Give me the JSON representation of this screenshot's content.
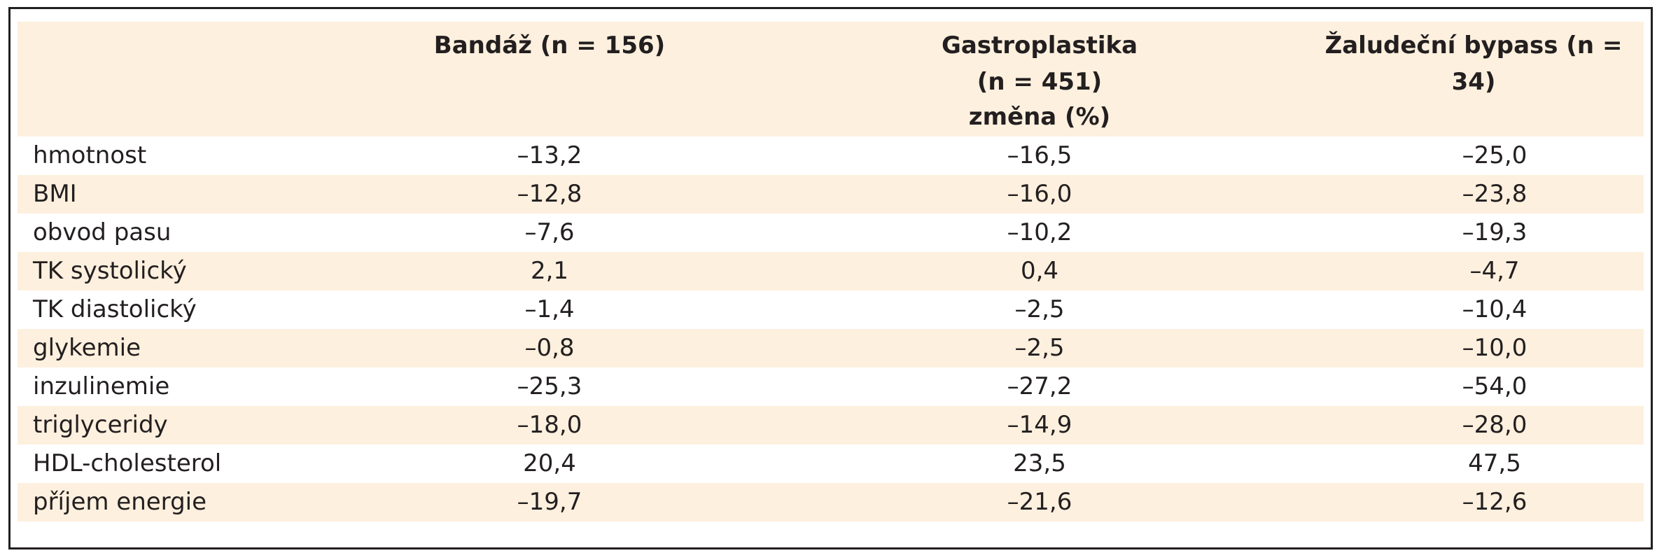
{
  "table": {
    "headers": {
      "col1": "Bandáž (n = 156)",
      "col2_line1": "Gastroplastika",
      "col2_line2": "(n = 451)",
      "col3": "Žaludeční bypass (n = 34)",
      "subheader": "změna (%)"
    },
    "rows": [
      {
        "label": "hmotnost",
        "values": [
          "–13,2",
          "–16,5",
          "–25,0"
        ]
      },
      {
        "label": "BMI",
        "values": [
          "–12,8",
          "–16,0",
          "–23,8"
        ]
      },
      {
        "label": "obvod pasu",
        "values": [
          "–7,6",
          "–10,2",
          "–19,3"
        ]
      },
      {
        "label": "TK systolický",
        "values": [
          "2,1",
          "0,4",
          "–4,7"
        ]
      },
      {
        "label": "TK diastolický",
        "values": [
          "–1,4",
          "–2,5",
          "–10,4"
        ]
      },
      {
        "label": "glykemie",
        "values": [
          "–0,8",
          "–2,5",
          "–10,0"
        ]
      },
      {
        "label": "inzulinemie",
        "values": [
          "–25,3",
          "–27,2",
          "–54,0"
        ]
      },
      {
        "label": "triglyceridy",
        "values": [
          "–18,0",
          "–14,9",
          "–28,0"
        ]
      },
      {
        "label": "HDL-cholesterol",
        "values": [
          "20,4",
          "23,5",
          "47,5"
        ]
      },
      {
        "label": "příjem energie",
        "values": [
          "–19,7",
          "–21,6",
          "–12,6"
        ]
      }
    ]
  }
}
